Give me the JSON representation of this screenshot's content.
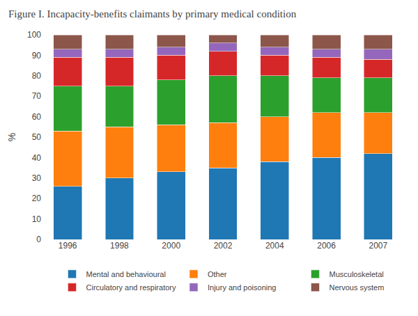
{
  "chart_data": {
    "type": "bar",
    "stacked": true,
    "title": "Figure I. Incapacity-benefits claimants by primary medical condition",
    "ylabel": "%",
    "categories": [
      "1996",
      "1998",
      "2000",
      "2002",
      "2004",
      "2006",
      "2007"
    ],
    "series": [
      {
        "name": "Mental and behavioural",
        "values": [
          26,
          30,
          33,
          35,
          38,
          40,
          42
        ]
      },
      {
        "name": "Other",
        "values": [
          27,
          25,
          23,
          22,
          22,
          22,
          20
        ]
      },
      {
        "name": "Musculoskeletal",
        "values": [
          22,
          20,
          22,
          23,
          20,
          17,
          17
        ]
      },
      {
        "name": "Circulatory and respiratory",
        "values": [
          14,
          14,
          12,
          12,
          10,
          10,
          9
        ]
      },
      {
        "name": "Injury and poisoning",
        "values": [
          4,
          4,
          4,
          4,
          4,
          4,
          5
        ]
      },
      {
        "name": "Nervous system",
        "values": [
          7,
          7,
          6,
          4,
          6,
          7,
          7
        ]
      }
    ],
    "ylim": [
      0,
      100
    ],
    "yticks": [
      0,
      10,
      20,
      30,
      40,
      50,
      60,
      70,
      80,
      90,
      100
    ],
    "grid": false,
    "legend": "bottom"
  }
}
